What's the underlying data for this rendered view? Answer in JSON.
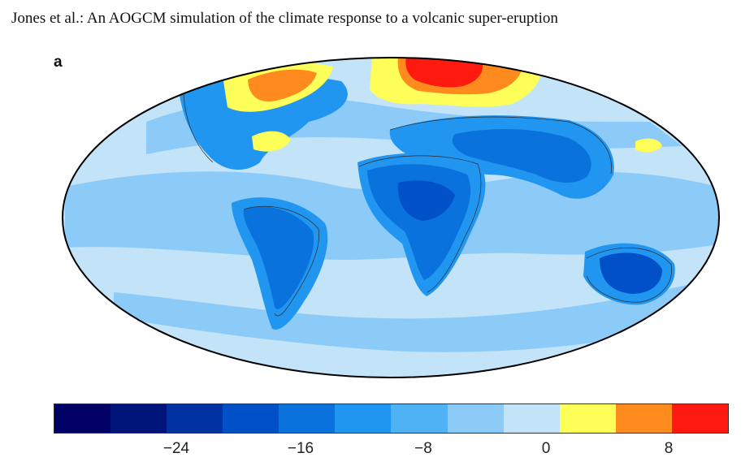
{
  "header": {
    "title": "Jones et al.: An AOGCM simulation of the climate response to a volcanic super-eruption"
  },
  "panel": {
    "label": "a"
  },
  "colorbar": {
    "colors": [
      "#000066",
      "#00157a",
      "#0033a1",
      "#0050c8",
      "#0a72dc",
      "#2196f0",
      "#4fb2f5",
      "#8ccaf7",
      "#c3e3f8",
      "#ffff5a",
      "#ff8a1e",
      "#ff1a10"
    ],
    "ticks": [
      "−24",
      "−16",
      "−8",
      "0",
      "8"
    ]
  },
  "map": {
    "colors": {
      "ocean_base": "#c3e3f8",
      "band_light": "#8ccaf7",
      "band_mid": "#4fb2f5",
      "land_light": "#2196f0",
      "land_mid": "#0a72dc",
      "land_dark": "#0050c8",
      "warm_yellow": "#ffff5a",
      "warm_orange": "#ff8a1e",
      "warm_red": "#ff1a10"
    }
  }
}
